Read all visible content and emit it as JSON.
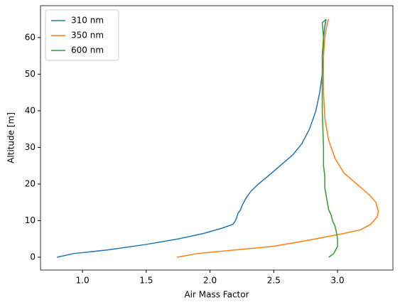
{
  "chart_data": {
    "type": "line",
    "xlabel": "Air Mass Factor",
    "ylabel": "Altitude [m]",
    "xlim": [
      0.671,
      3.434
    ],
    "ylim": [
      -3.5,
      68.7
    ],
    "xticks": [
      {
        "value": 1,
        "label": "1.0"
      },
      {
        "value": 1.5,
        "label": "1.5"
      },
      {
        "value": 2,
        "label": "2.0"
      },
      {
        "value": 2.5,
        "label": "2.5"
      },
      {
        "value": 3,
        "label": "3.0"
      }
    ],
    "yticks": [
      0,
      10,
      20,
      30,
      40,
      50,
      60
    ],
    "legend": "upper left",
    "series": [
      {
        "name": "310 nm",
        "color": "#1f77b4",
        "x": [
          0.8,
          0.93,
          1.2,
          1.5,
          1.75,
          1.95,
          2.1,
          2.18,
          2.2,
          2.22,
          2.24,
          2.25,
          2.28,
          2.32,
          2.38,
          2.45,
          2.55,
          2.65,
          2.72,
          2.78,
          2.83,
          2.86,
          2.88,
          2.89,
          2.89,
          2.9,
          2.91
        ],
        "values": [
          0,
          1,
          2,
          3.5,
          5,
          6.5,
          8,
          9,
          10,
          12,
          13,
          14,
          16,
          18,
          20,
          22,
          25,
          28,
          31,
          35,
          40,
          45,
          50,
          55,
          60,
          63,
          65
        ]
      },
      {
        "name": "350 nm",
        "color": "#ff7f0e",
        "x": [
          1.74,
          1.9,
          2.2,
          2.5,
          2.75,
          2.9,
          3.05,
          3.18,
          3.26,
          3.31,
          3.32,
          3.3,
          3.25,
          3.15,
          3.05,
          2.98,
          2.93,
          2.9,
          2.89,
          2.89,
          2.9,
          2.92,
          2.93
        ],
        "values": [
          0,
          1,
          2,
          3,
          4.5,
          5.5,
          6.5,
          7.5,
          9,
          11,
          12.5,
          15,
          17,
          20,
          23,
          27,
          32,
          38,
          45,
          55,
          60,
          64,
          65
        ]
      },
      {
        "name": "600 nm",
        "color": "#2ca02c",
        "x": [
          2.93,
          2.97,
          3.0,
          3.0,
          2.99,
          2.98,
          2.96,
          2.95,
          2.93,
          2.92,
          2.91,
          2.9,
          2.9,
          2.89,
          2.89,
          2.88,
          2.88,
          2.88,
          2.89,
          2.88,
          2.91
        ],
        "values": [
          0,
          1,
          3,
          5,
          7,
          8.5,
          10,
          11.5,
          13,
          15,
          17,
          19,
          22,
          25,
          30,
          40,
          50,
          55,
          60,
          64,
          65
        ]
      }
    ]
  }
}
